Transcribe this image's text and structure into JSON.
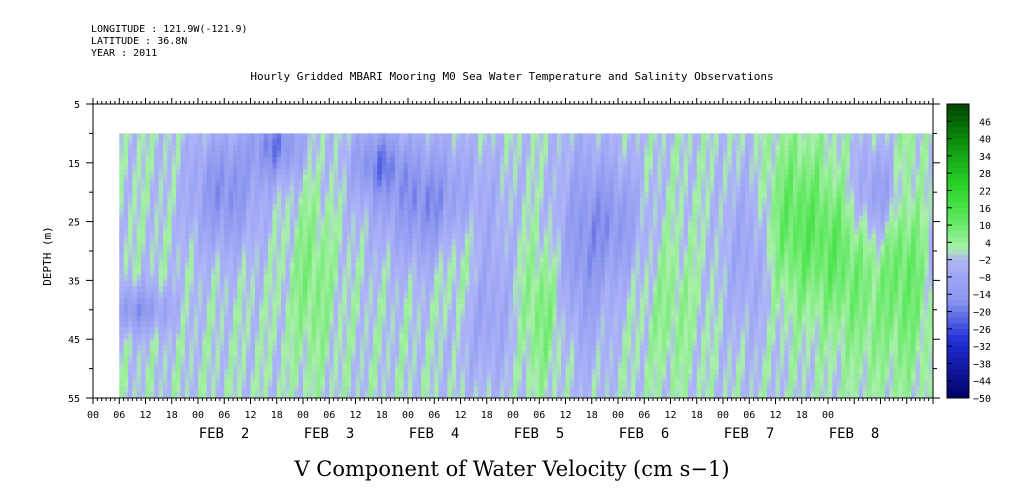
{
  "header": {
    "longitude": "LONGITUDE : 121.9W(-121.9)",
    "latitude": "LATITUDE : 36.8N",
    "year": "YEAR : 2011"
  },
  "chart_data": {
    "type": "heatmap",
    "title": "Hourly Gridded MBARI Mooring M0 Sea Water Temperature and Salinity Observations",
    "xlabel": "V Component of Water Velocity (cm s−1)",
    "ylabel": "DEPTH (m)",
    "x_unit": "hour",
    "x_range": [
      "2011-02-01T00:00",
      "2011-02-09T00:00"
    ],
    "data_x_range": [
      "2011-02-01T06:00",
      "2011-02-09T00:00"
    ],
    "y_range": [
      5,
      55
    ],
    "data_y_range": [
      10,
      55
    ],
    "y_inverted": true,
    "y_ticks": [
      5,
      15,
      25,
      35,
      45,
      55
    ],
    "x_tick_hours": [
      "00",
      "06",
      "12",
      "18",
      "00",
      "06",
      "12",
      "18",
      "00",
      "06",
      "12",
      "18",
      "00",
      "06",
      "12",
      "18",
      "00",
      "06",
      "12",
      "18",
      "00",
      "06",
      "12",
      "18",
      "00",
      "06",
      "12",
      "18",
      "00"
    ],
    "date_labels": [
      "FEB  2",
      "FEB  3",
      "FEB  4",
      "FEB  5",
      "FEB  6",
      "FEB  7",
      "FEB  8"
    ],
    "colorbar_levels": [
      "46",
      "40",
      "34",
      "28",
      "22",
      "16",
      "10",
      "4",
      "−2",
      "−8",
      "−14",
      "−20",
      "−26",
      "−32",
      "−38",
      "−44",
      "−50"
    ],
    "colorbar_range": [
      -50,
      52
    ],
    "colors": {
      "negative_light": "#aeb4f8",
      "negative_mid": "#8a96ee",
      "positive_light": "#a8f0a8",
      "positive_mid": "#5de85d",
      "positive_strong": "#28d228",
      "frame": "#000000"
    },
    "grid": false,
    "legend": "right"
  }
}
